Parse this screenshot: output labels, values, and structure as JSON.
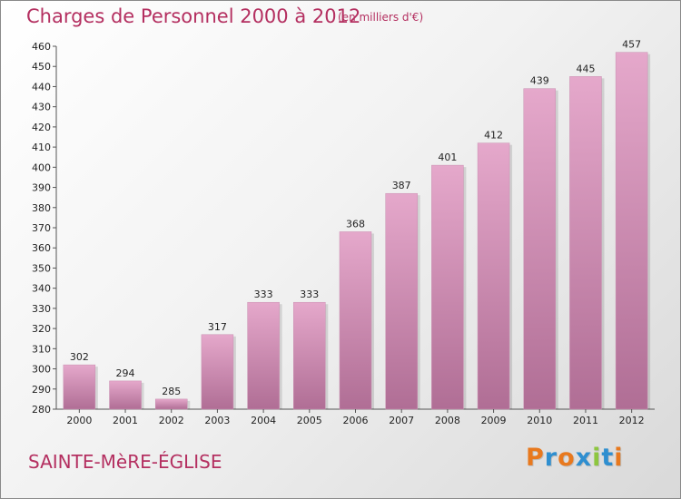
{
  "header": {
    "title": "Charges de Personnel 2000 à 2012",
    "subtitle": "(en milliers d'€)"
  },
  "footer": {
    "commune": "SAINTE-MèRE-ÉGLISE",
    "logo_text": "Proxiti",
    "logo_colors": [
      "#e8791e",
      "#2f8fd0",
      "#e8791e",
      "#2f8fd0",
      "#8dc63f",
      "#2f8fd0",
      "#e8791e"
    ]
  },
  "colors": {
    "accent": "#b42f60",
    "bar_top": "#e5a8cb",
    "bar_bottom": "#b06e95"
  },
  "chart_data": {
    "type": "bar",
    "categories": [
      "2000",
      "2001",
      "2002",
      "2003",
      "2004",
      "2005",
      "2006",
      "2007",
      "2008",
      "2009",
      "2010",
      "2011",
      "2012"
    ],
    "values": [
      302,
      294,
      285,
      317,
      333,
      333,
      368,
      387,
      401,
      412,
      439,
      445,
      457
    ],
    "title": "Charges de Personnel 2000 à 2012",
    "subtitle": "(en milliers d'€)",
    "xlabel": "",
    "ylabel": "",
    "ylim": [
      280,
      460
    ],
    "ytick_step": 10,
    "grid": false,
    "legend": "none"
  }
}
